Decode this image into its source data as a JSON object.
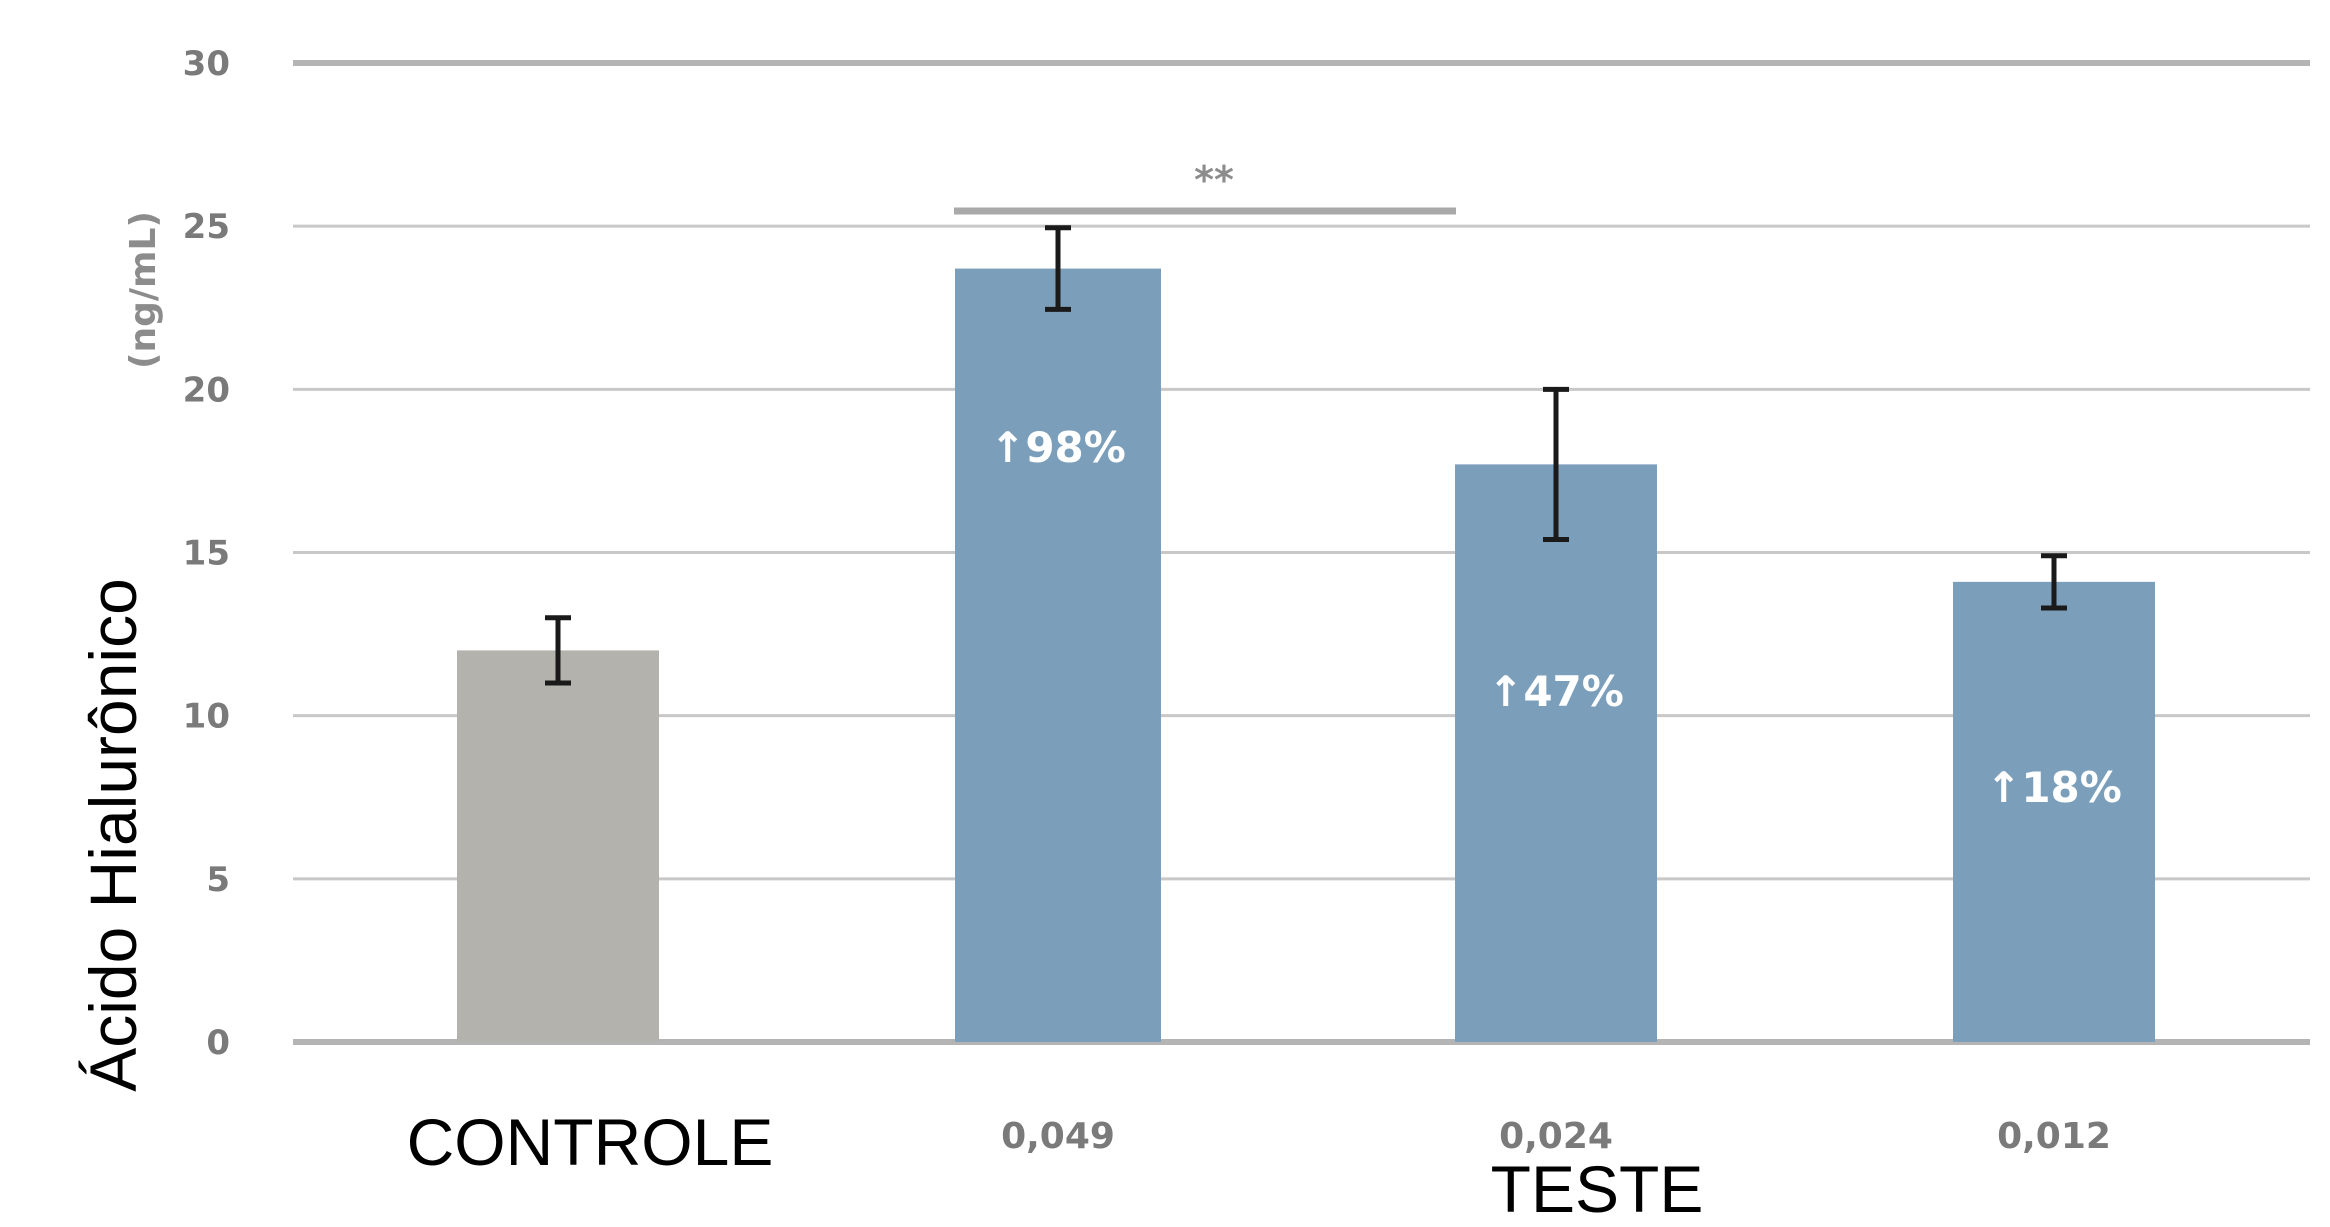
{
  "chart_data": {
    "type": "bar",
    "categories": [
      "CONTROLE",
      "0,049",
      "0,024",
      "0,012"
    ],
    "values": [
      12.0,
      23.7,
      17.7,
      14.1
    ],
    "error": [
      1.0,
      1.25,
      2.3,
      0.8
    ],
    "annotations": [
      "",
      "↑98%",
      "↑47%",
      "↑18%"
    ],
    "ylabel": "Ácido Hialurônico",
    "ylabel_unit": "(ng/mL)",
    "xlabel": "TESTE",
    "ylim": [
      0,
      30
    ],
    "yticks": [
      0,
      5,
      10,
      15,
      20,
      25,
      30
    ],
    "significance": {
      "label": "**",
      "from_category": 1,
      "to_category": 2
    },
    "grid": true,
    "legend": "none",
    "colors": {
      "control": "#b3b2ac",
      "test": "#7b9fbb",
      "grid": "#c8c8c8",
      "axis": "#b4b4b4",
      "errorbar": "#1a1a1a"
    }
  }
}
